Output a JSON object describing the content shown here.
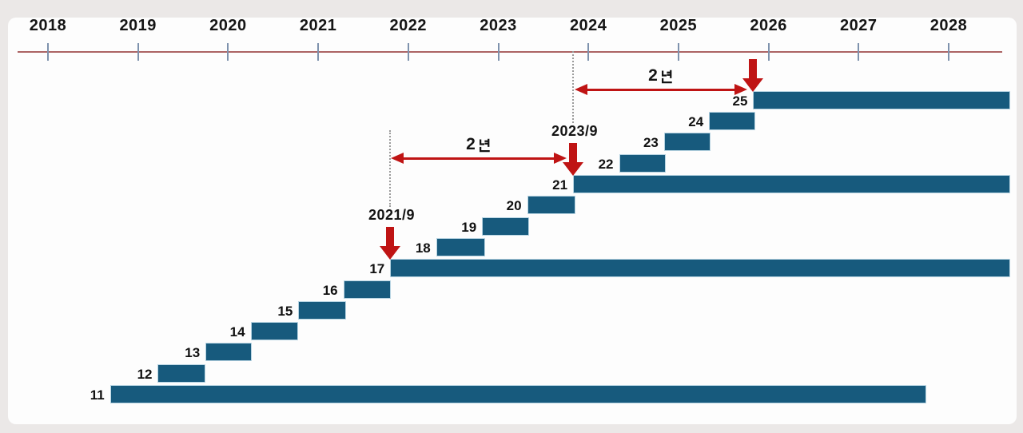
{
  "chart_data": {
    "type": "timeline",
    "x_axis": {
      "years": [
        "2018",
        "2019",
        "2020",
        "2021",
        "2022",
        "2023",
        "2024",
        "2025",
        "2026",
        "2027",
        "2028"
      ],
      "range": [
        2018,
        2028.7
      ]
    },
    "bars": [
      {
        "label": "11",
        "start": 2018.69,
        "end": 2027.75
      },
      {
        "label": "12",
        "start": 2019.22,
        "end": 2019.75
      },
      {
        "label": "13",
        "start": 2019.75,
        "end": 2020.26
      },
      {
        "label": "14",
        "start": 2020.25,
        "end": 2020.78
      },
      {
        "label": "15",
        "start": 2020.78,
        "end": 2021.31
      },
      {
        "label": "16",
        "start": 2021.28,
        "end": 2021.81
      },
      {
        "label": "17",
        "start": 2021.8,
        "end": 2028.68
      },
      {
        "label": "18",
        "start": 2022.31,
        "end": 2022.85
      },
      {
        "label": "19",
        "start": 2022.82,
        "end": 2023.34
      },
      {
        "label": "20",
        "start": 2023.32,
        "end": 2023.86
      },
      {
        "label": "21",
        "start": 2023.83,
        "end": 2028.68
      },
      {
        "label": "22",
        "start": 2024.34,
        "end": 2024.86
      },
      {
        "label": "23",
        "start": 2024.84,
        "end": 2025.36
      },
      {
        "label": "24",
        "start": 2025.34,
        "end": 2025.85
      },
      {
        "label": "25",
        "start": 2025.83,
        "end": 2028.68
      }
    ],
    "release_markers": [
      {
        "label": "2021/9",
        "at_version": "17"
      },
      {
        "label": "2023/9",
        "at_version": "21"
      },
      {
        "label": "",
        "at_version": "25"
      }
    ],
    "interval_arrows": [
      {
        "label": "2년",
        "from_version": "17",
        "to_version": "21"
      },
      {
        "label": "2년",
        "from_version": "21",
        "to_version": "25"
      }
    ],
    "colors": {
      "bar": "#175a7d",
      "bar_edge": "#b7d4e2",
      "accent_red": "#bf1414",
      "axis_line": "#9d4949",
      "tick": "#7e92ad",
      "text": "#141414",
      "dash": "#9b9b9b"
    }
  }
}
